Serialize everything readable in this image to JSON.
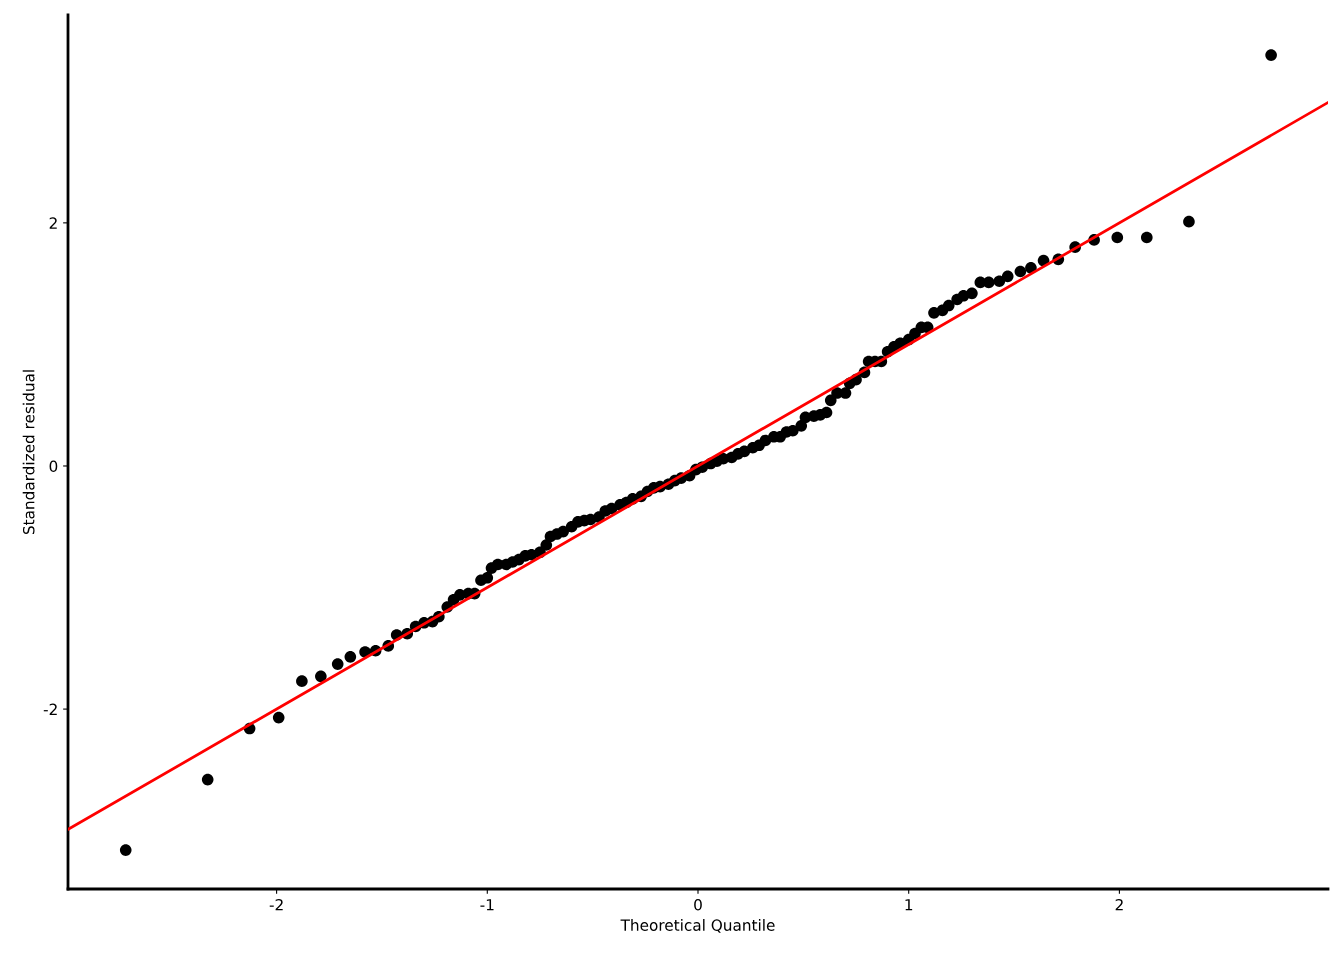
{
  "chart_data": {
    "type": "scatter",
    "xlabel": "Theoretical Quantile",
    "ylabel": "Standardized residual",
    "xlim": [
      -2.99,
      2.99
    ],
    "ylim": [
      -3.48,
      3.71
    ],
    "xticks": [
      -2,
      -1,
      0,
      1,
      2
    ],
    "yticks": [
      -2,
      0,
      2
    ],
    "grid": false,
    "legend": false,
    "marker": "circle",
    "series": [
      {
        "color": "#000000",
        "x": [
          -2.716,
          -2.327,
          -2.128,
          -1.99,
          -1.88,
          -1.79,
          -1.71,
          -1.65,
          -1.58,
          -1.53,
          -1.47,
          -1.43,
          -1.38,
          -1.34,
          -1.3,
          -1.26,
          -1.23,
          -1.19,
          -1.16,
          -1.13,
          -1.09,
          -1.06,
          -1.03,
          -1.0,
          -0.98,
          -0.95,
          -0.91,
          -0.88,
          -0.85,
          -0.82,
          -0.79,
          -0.75,
          -0.72,
          -0.7,
          -0.67,
          -0.64,
          -0.6,
          -0.57,
          -0.54,
          -0.51,
          -0.47,
          -0.44,
          -0.41,
          -0.37,
          -0.34,
          -0.31,
          -0.27,
          -0.24,
          -0.21,
          -0.18,
          -0.14,
          -0.11,
          -0.08,
          -0.04,
          -0.01,
          0.02,
          0.06,
          0.09,
          0.12,
          0.16,
          0.19,
          0.22,
          0.26,
          0.29,
          0.32,
          0.36,
          0.39,
          0.42,
          0.45,
          0.49,
          0.51,
          0.55,
          0.58,
          0.61,
          0.63,
          0.66,
          0.7,
          0.72,
          0.75,
          0.79,
          0.81,
          0.84,
          0.87,
          0.9,
          0.93,
          0.96,
          1.0,
          1.03,
          1.06,
          1.09,
          1.12,
          1.16,
          1.19,
          1.23,
          1.26,
          1.3,
          1.34,
          1.38,
          1.43,
          1.47,
          1.53,
          1.58,
          1.64,
          1.71,
          1.79,
          1.88,
          1.99,
          2.13,
          2.33,
          2.72
        ],
        "values": [
          -3.16,
          -2.58,
          -2.16,
          -2.07,
          -1.77,
          -1.73,
          -1.63,
          -1.57,
          -1.53,
          -1.52,
          -1.48,
          -1.39,
          -1.38,
          -1.32,
          -1.29,
          -1.28,
          -1.24,
          -1.16,
          -1.1,
          -1.06,
          -1.05,
          -1.05,
          -0.94,
          -0.92,
          -0.84,
          -0.81,
          -0.81,
          -0.79,
          -0.77,
          -0.74,
          -0.73,
          -0.71,
          -0.65,
          -0.58,
          -0.56,
          -0.54,
          -0.5,
          -0.46,
          -0.45,
          -0.44,
          -0.42,
          -0.37,
          -0.35,
          -0.32,
          -0.3,
          -0.27,
          -0.25,
          -0.21,
          -0.18,
          -0.17,
          -0.15,
          -0.12,
          -0.1,
          -0.08,
          -0.03,
          -0.01,
          0.02,
          0.04,
          0.06,
          0.07,
          0.1,
          0.12,
          0.15,
          0.17,
          0.21,
          0.24,
          0.24,
          0.28,
          0.29,
          0.33,
          0.4,
          0.41,
          0.42,
          0.44,
          0.54,
          0.6,
          0.6,
          0.68,
          0.71,
          0.77,
          0.86,
          0.86,
          0.86,
          0.94,
          0.98,
          1.01,
          1.04,
          1.09,
          1.14,
          1.14,
          1.26,
          1.28,
          1.32,
          1.37,
          1.4,
          1.42,
          1.51,
          1.51,
          1.52,
          1.56,
          1.6,
          1.63,
          1.69,
          1.7,
          1.8,
          1.86,
          1.88,
          1.88,
          2.01,
          3.38
        ]
      },
      {
        "type": "line",
        "color": "#ff0000",
        "x": [
          -2.99,
          2.99
        ],
        "values": [
          -2.99,
          2.99
        ],
        "marker": "none",
        "line_style": "solid"
      }
    ]
  }
}
